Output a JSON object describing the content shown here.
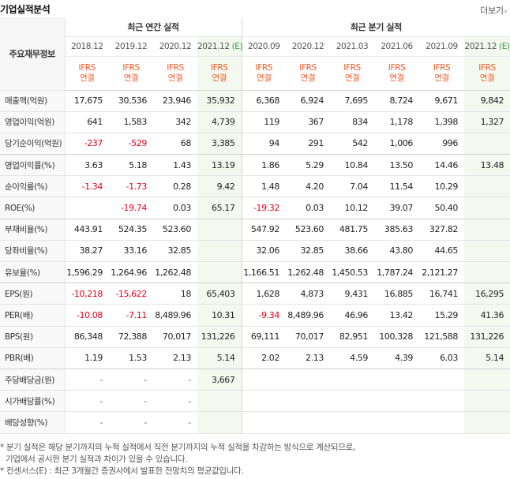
{
  "header": {
    "title": "기업실적분석",
    "more_label": "더보기"
  },
  "table": {
    "row_header_label": "주요재무정보",
    "groups": [
      {
        "label": "최근 연간 실적"
      },
      {
        "label": "최근 분기 실적"
      }
    ],
    "periods": [
      {
        "date": "2018.12",
        "suffix": ""
      },
      {
        "date": "2019.12",
        "suffix": ""
      },
      {
        "date": "2020.12",
        "suffix": ""
      },
      {
        "date": "2021.12",
        "suffix": "(E)"
      },
      {
        "date": "2020.09",
        "suffix": ""
      },
      {
        "date": "2020.12",
        "suffix": ""
      },
      {
        "date": "2021.03",
        "suffix": ""
      },
      {
        "date": "2021.06",
        "suffix": ""
      },
      {
        "date": "2021.09",
        "suffix": ""
      },
      {
        "date": "2021.12",
        "suffix": "(E)"
      }
    ],
    "ifrs_line1": "IFRS",
    "ifrs_line2": "연결",
    "rows": [
      {
        "label": "매출액(억원)",
        "values": [
          "17,675",
          "30,536",
          "23,946",
          "35,932",
          "6,368",
          "6,924",
          "7,695",
          "8,724",
          "9,671",
          "9,842"
        ]
      },
      {
        "label": "영업이익(억원)",
        "values": [
          "641",
          "1,583",
          "342",
          "4,739",
          "119",
          "367",
          "834",
          "1,178",
          "1,398",
          "1,327"
        ]
      },
      {
        "label": "당기순이익(억원)",
        "values": [
          "-237",
          "-529",
          "68",
          "3,385",
          "94",
          "291",
          "542",
          "1,006",
          "996",
          ""
        ]
      },
      {
        "label": "영업이익률(%)",
        "values": [
          "3.63",
          "5.18",
          "1.43",
          "13.19",
          "1.86",
          "5.29",
          "10.84",
          "13.50",
          "14.46",
          "13.48"
        ]
      },
      {
        "label": "순이익률(%)",
        "values": [
          "-1.34",
          "-1.73",
          "0.28",
          "9.42",
          "1.48",
          "4.20",
          "7.04",
          "11.54",
          "10.29",
          ""
        ]
      },
      {
        "label": "ROE(%)",
        "values": [
          "",
          "-19.74",
          "0.03",
          "65.17",
          "-19.32",
          "0.03",
          "10.12",
          "39.07",
          "50.40",
          ""
        ]
      },
      {
        "label": "부채비율(%)",
        "values": [
          "443.91",
          "524.35",
          "523.60",
          "",
          "547.92",
          "523.60",
          "481.75",
          "385.63",
          "327.82",
          ""
        ]
      },
      {
        "label": "당좌비율(%)",
        "values": [
          "38.27",
          "33.16",
          "32.85",
          "",
          "32.06",
          "32.85",
          "38.66",
          "43.80",
          "44.65",
          ""
        ]
      },
      {
        "label": "유보율(%)",
        "values": [
          "1,596.29",
          "1,264.96",
          "1,262.48",
          "",
          "1,166.51",
          "1,262.48",
          "1,450.53",
          "1,787.24",
          "2,121.27",
          ""
        ]
      },
      {
        "label": "EPS(원)",
        "values": [
          "-10,218",
          "-15,622",
          "18",
          "65,403",
          "1,628",
          "4,873",
          "9,431",
          "16,885",
          "16,741",
          "16,295"
        ]
      },
      {
        "label": "PER(배)",
        "values": [
          "-10.08",
          "-7.11",
          "8,489.96",
          "10.31",
          "-9.34",
          "8,489.96",
          "46.96",
          "13.42",
          "15.29",
          "41.36"
        ]
      },
      {
        "label": "BPS(원)",
        "values": [
          "86,348",
          "72,388",
          "70,017",
          "131,226",
          "69,111",
          "70,017",
          "82,951",
          "100,328",
          "121,588",
          "131,226"
        ]
      },
      {
        "label": "PBR(배)",
        "values": [
          "1.19",
          "1.53",
          "2.13",
          "5.14",
          "2.02",
          "2.13",
          "4.59",
          "4.39",
          "6.03",
          "5.14"
        ]
      },
      {
        "label": "주당배당금(원)",
        "values": [
          "-",
          "-",
          "-",
          "3,667",
          "",
          "",
          "",
          "",
          "",
          ""
        ]
      },
      {
        "label": "시가배당률(%)",
        "values": [
          "-",
          "-",
          "-",
          "",
          "",
          "",
          "",
          "",
          "",
          ""
        ]
      },
      {
        "label": "배당성향(%)",
        "values": [
          "-",
          "-",
          "-",
          "",
          "",
          "",
          "",
          "",
          "",
          ""
        ]
      }
    ]
  },
  "notes": {
    "line1": "* 분기 실적은 해당 분기까지의 누적 실적에서 직전 분기까지의 누적 실적을 차감하는 방식으로 계산되므로,",
    "line2": "기업에서 공시한 분기 실적과 차이가 있을 수 있습니다.",
    "line3": "* 컨센서스(E) : 최근 3개월간 증권사에서 발표한 전망치의 평균값입니다."
  },
  "colors": {
    "negative": "#e8001c",
    "ifrs": "#f05a28",
    "estimate_bg": "#f3f9ee",
    "estimate_mark": "#3a9a3a"
  }
}
